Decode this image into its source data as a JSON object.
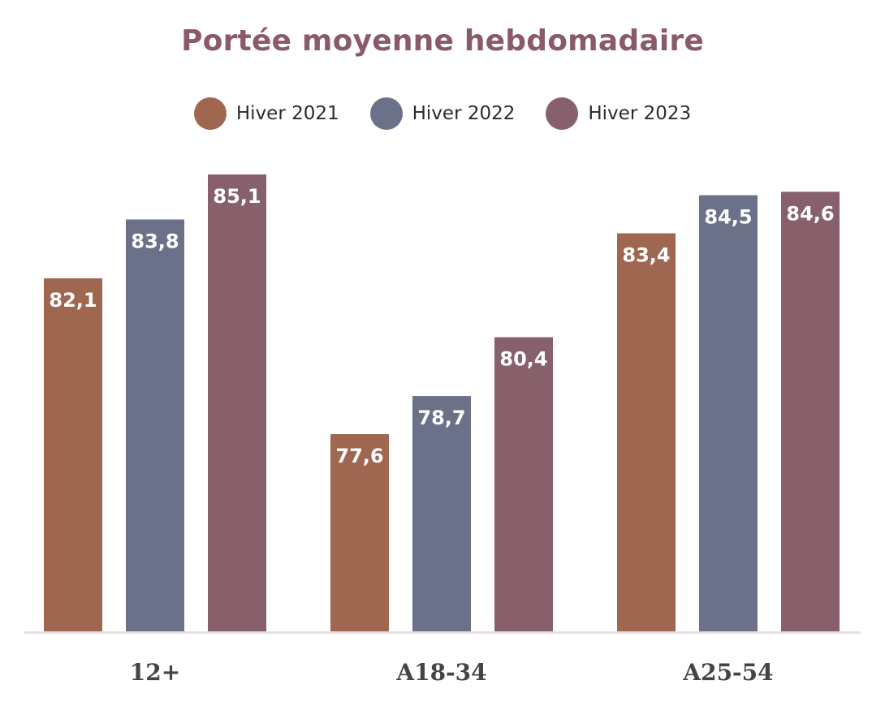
{
  "chart_data": {
    "type": "bar",
    "title": "Portée moyenne hebdomadaire",
    "categories": [
      "12+",
      "A18-34",
      "A25-54"
    ],
    "series": [
      {
        "name": "Hiver 2021",
        "color": "#9f6650",
        "values": [
          82.1,
          77.6,
          83.4
        ],
        "labels": [
          "82,1",
          "77,6",
          "83,4"
        ]
      },
      {
        "name": "Hiver 2022",
        "color": "#6b7189",
        "values": [
          83.8,
          78.7,
          84.5
        ],
        "labels": [
          "83,8",
          "78,7",
          "84,5"
        ]
      },
      {
        "name": "Hiver 2023",
        "color": "#87606b",
        "values": [
          85.1,
          80.4,
          84.6
        ],
        "labels": [
          "85,1",
          "80,4",
          "84,6"
        ]
      }
    ],
    "legend_position": "top-center",
    "grid": false,
    "axis_color": "#e8dfe0",
    "title_color": "#8a5a6a"
  }
}
